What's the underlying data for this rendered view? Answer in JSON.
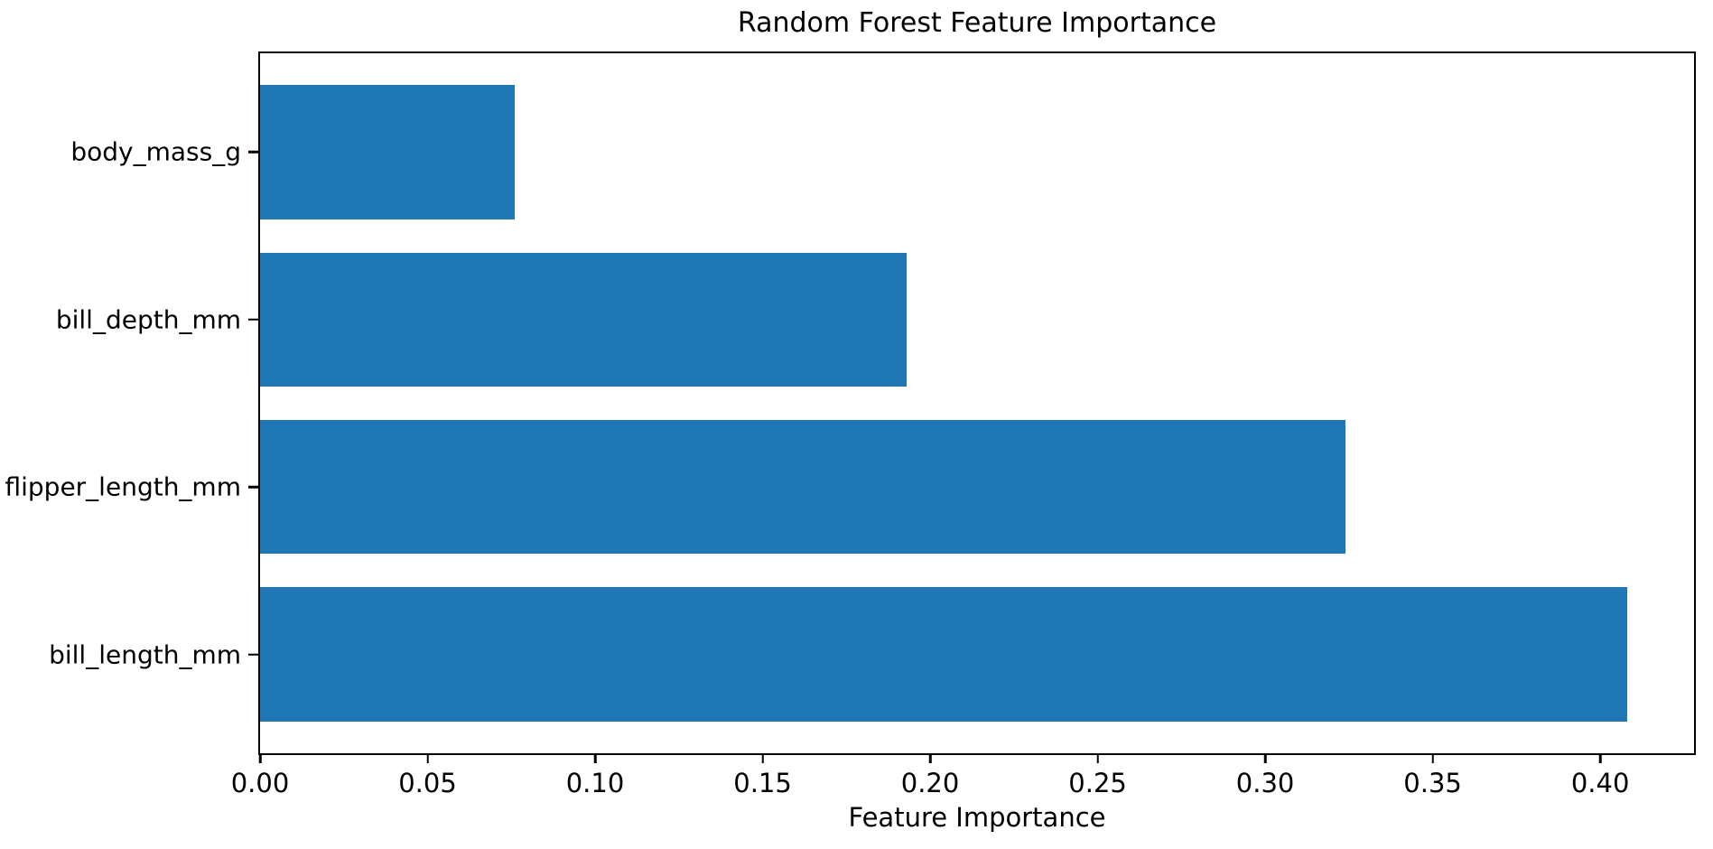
{
  "chart_data": {
    "type": "bar",
    "orientation": "horizontal",
    "title": "Random Forest Feature Importance",
    "xlabel": "Feature Importance",
    "ylabel": "",
    "categories": [
      "body_mass_g",
      "bill_depth_mm",
      "flipper_length_mm",
      "bill_length_mm"
    ],
    "categories_order": "top-to-bottom",
    "values": [
      0.076,
      0.193,
      0.324,
      0.408
    ],
    "xlim": [
      0,
      0.428
    ],
    "xticks": [
      0.0,
      0.05,
      0.1,
      0.15,
      0.2,
      0.25,
      0.3,
      0.35,
      0.4
    ],
    "xtick_labels": [
      "0.00",
      "0.05",
      "0.10",
      "0.15",
      "0.20",
      "0.25",
      "0.30",
      "0.35",
      "0.40"
    ],
    "grid": false,
    "legend_position": "none",
    "layout": {
      "ylim": [
        -0.59,
        3.59
      ],
      "bar_height": 0.8
    }
  },
  "colors": {
    "bar": "#1f77b4",
    "text": "#000000",
    "spine": "#000000",
    "background": "#ffffff"
  }
}
